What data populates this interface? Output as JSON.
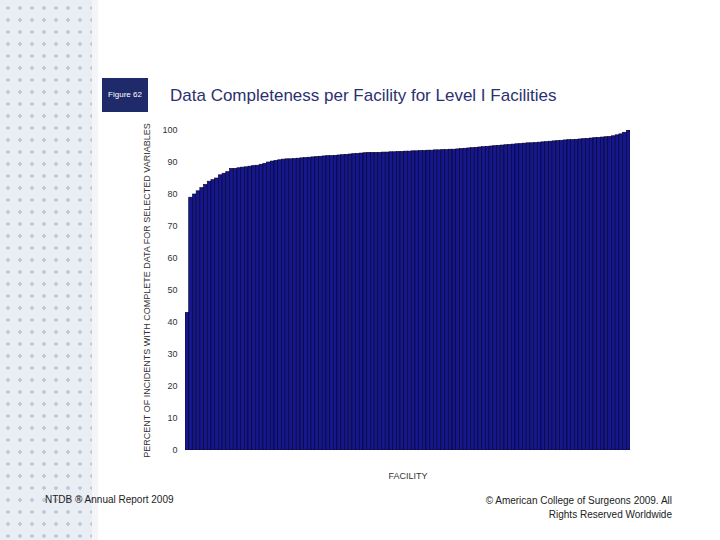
{
  "chart_data": {
    "type": "bar",
    "title": "Data Completeness per Facility for Level I Facilities",
    "figure_label": "Figure 62",
    "footer_left": "NTDB ® Annual Report 2009",
    "footer_right": "© American College of Surgeons 2009.  All Rights Reserved Worldwide",
    "x_label": "FACILITY",
    "y_label": "PERCENT OF INCIDENTS WITH COMPLETE DATA FOR SELECTED VARIABLES",
    "categories": [
      null,
      null,
      null,
      null,
      null,
      null,
      null,
      null,
      null,
      null,
      null,
      null,
      null,
      null,
      null,
      null,
      null,
      null,
      null,
      null,
      null,
      null,
      null,
      null,
      null,
      null,
      null,
      null,
      null,
      null,
      null,
      null,
      null,
      null,
      null,
      null,
      null,
      null,
      null,
      null,
      null,
      null,
      null,
      null,
      null,
      null,
      null,
      null,
      null,
      null,
      null,
      null,
      null,
      null,
      null,
      null,
      null,
      null,
      null,
      null,
      null,
      null,
      null,
      null,
      null,
      null,
      null,
      null,
      null,
      null,
      null,
      null,
      null,
      null,
      null,
      null,
      null,
      null,
      null,
      null,
      null,
      null,
      null,
      null,
      null,
      null,
      null,
      null,
      null,
      null,
      null,
      null,
      null,
      null,
      null,
      null,
      null,
      null,
      null,
      null,
      null,
      null,
      null,
      null,
      null,
      null,
      null,
      null,
      null,
      null,
      null,
      null,
      null,
      null,
      null,
      null,
      null,
      null,
      null,
      null
    ],
    "values": [
      43,
      79,
      80,
      81,
      82,
      83,
      84,
      84.5,
      85,
      86,
      86.5,
      87,
      88,
      88,
      88.2,
      88.4,
      88.5,
      88.7,
      88.9,
      89,
      89.3,
      89.6,
      90,
      90.3,
      90.5,
      90.7,
      90.9,
      91,
      91,
      91.1,
      91.2,
      91.3,
      91.4,
      91.5,
      91.6,
      91.7,
      91.8,
      91.9,
      92,
      92,
      92.1,
      92.2,
      92.3,
      92.4,
      92.5,
      92.6,
      92.7,
      92.8,
      92.9,
      93,
      93,
      93,
      93,
      93.1,
      93.1,
      93.2,
      93.2,
      93.3,
      93.3,
      93.4,
      93.4,
      93.5,
      93.5,
      93.6,
      93.6,
      93.7,
      93.7,
      93.8,
      93.8,
      93.9,
      93.9,
      94,
      94,
      94.1,
      94.2,
      94.3,
      94.4,
      94.5,
      94.6,
      94.7,
      94.8,
      94.9,
      95,
      95.1,
      95.2,
      95.3,
      95.4,
      95.5,
      95.6,
      95.7,
      95.8,
      95.9,
      96,
      96,
      96.1,
      96.2,
      96.3,
      96.4,
      96.5,
      96.6,
      96.7,
      96.8,
      96.9,
      97,
      97,
      97.1,
      97.2,
      97.3,
      97.4,
      97.5,
      97.6,
      97.7,
      97.8,
      97.9,
      98,
      98.2,
      98.5,
      98.8,
      99.3,
      100
    ],
    "color": "#16168f",
    "ylim": [
      0,
      100
    ],
    "yticks": [
      0,
      10,
      20,
      30,
      40,
      50,
      60,
      70,
      80,
      90,
      100
    ],
    "grid": false,
    "tick_labels": "y"
  }
}
